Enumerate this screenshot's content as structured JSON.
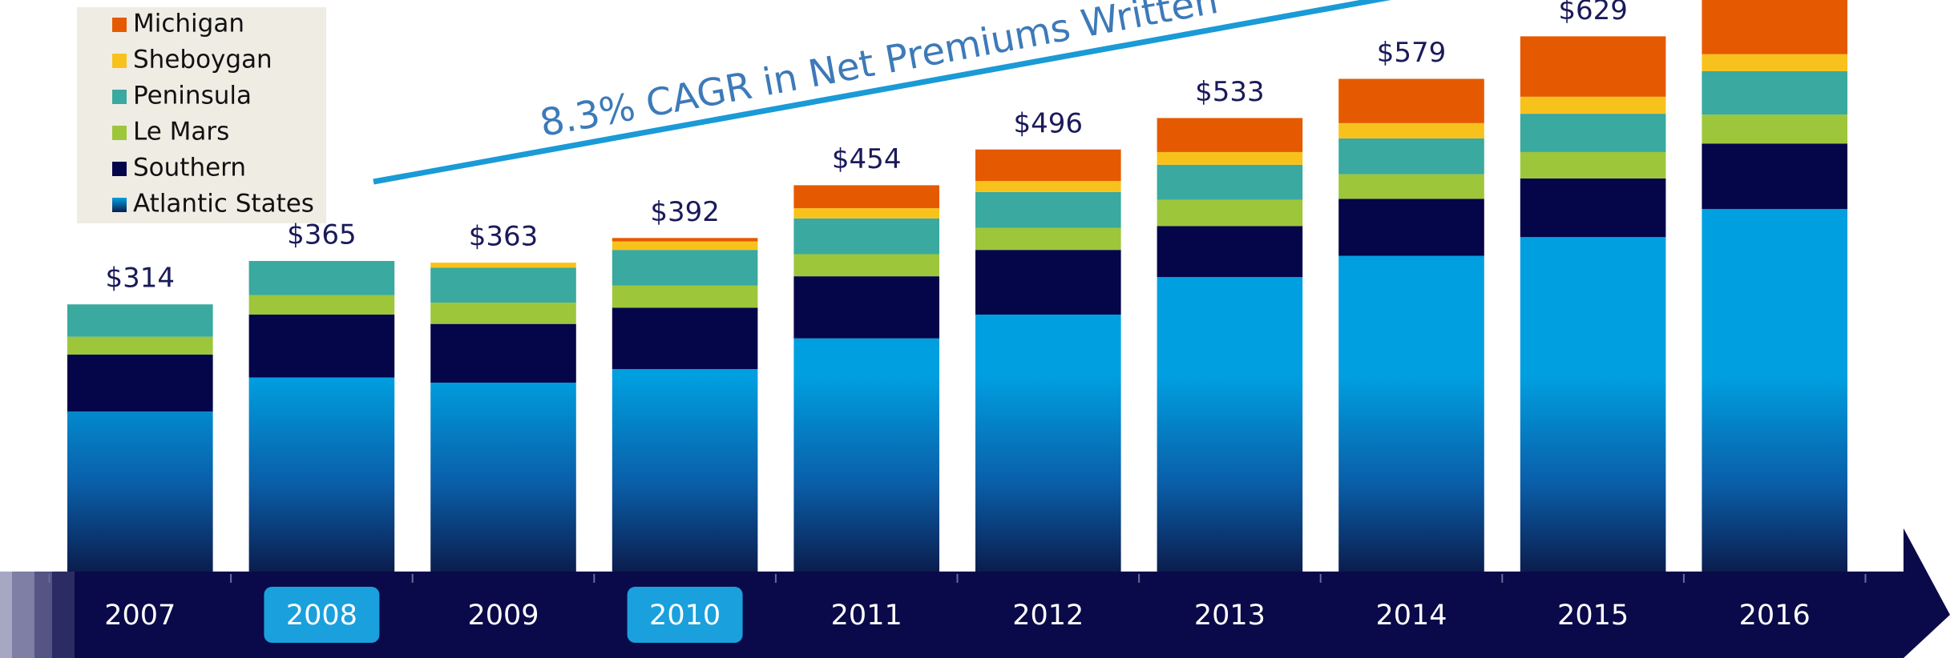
{
  "chart_data": {
    "type": "stacked-bar",
    "annotation": "8.3% CAGR in Net Premiums Written",
    "categories": [
      "2007",
      "2008",
      "2009",
      "2010",
      "2011",
      "2012",
      "2013",
      "2014",
      "2015",
      "2016"
    ],
    "series": [
      {
        "name": "Atlantic States",
        "color": "#009fe0",
        "values": [
          188,
          228,
          222,
          238,
          274,
          302,
          346,
          371,
          393,
          426
        ]
      },
      {
        "name": "Southern",
        "color": "#05054a",
        "values": [
          67,
          74,
          69,
          72,
          73,
          76,
          60,
          67,
          69,
          77
        ]
      },
      {
        "name": "Le Mars",
        "color": "#9dc63b",
        "values": [
          21,
          23,
          25,
          26,
          26,
          26,
          31,
          29,
          31,
          34
        ]
      },
      {
        "name": "Peninsula",
        "color": "#3aa99f",
        "values": [
          38,
          40,
          41,
          42,
          42,
          42,
          41,
          42,
          45,
          51
        ]
      },
      {
        "name": "Sheboygan",
        "color": "#f8c21c",
        "values": [
          null,
          null,
          6,
          10,
          12,
          13,
          15,
          18,
          20,
          20
        ]
      },
      {
        "name": "Michigan",
        "color": "#e55a00",
        "values": [
          null,
          null,
          null,
          4,
          27,
          37,
          40,
          52,
          71,
          70
        ]
      }
    ],
    "totals": [
      314,
      365,
      363,
      392,
      454,
      496,
      533,
      579,
      629,
      null
    ],
    "total_labels": [
      "$314",
      "$365",
      "$363",
      "$392",
      "$454",
      "$496",
      "$533",
      "$579",
      "$629",
      null
    ],
    "legend": "top-left"
  }
}
